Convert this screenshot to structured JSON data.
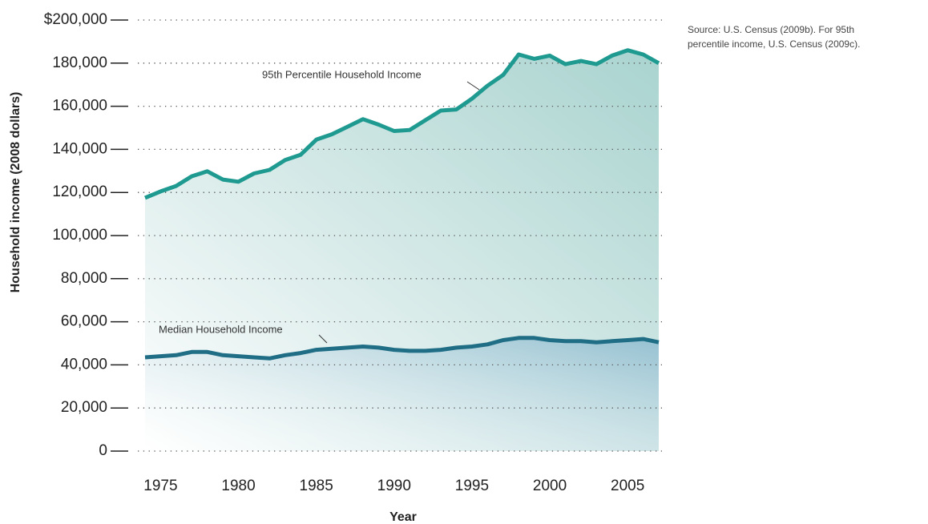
{
  "chart_data": {
    "type": "line",
    "y_label": "Household income (2008 dollars)",
    "x_label": "Year",
    "note": [
      "Source: U.S. Census (2009b). For 95th",
      "percentile income, U.S. Census (2009c)."
    ],
    "x": [
      1974,
      1975,
      1976,
      1977,
      1978,
      1979,
      1980,
      1981,
      1982,
      1983,
      1984,
      1985,
      1986,
      1987,
      1988,
      1989,
      1990,
      1991,
      1992,
      1993,
      1994,
      1995,
      1996,
      1997,
      1998,
      1999,
      2000,
      2001,
      2002,
      2003,
      2004,
      2005,
      2006,
      2007
    ],
    "series": [
      {
        "name": "95th Percentile Household Income",
        "color": "#1f9a90",
        "values": [
          117500,
          120500,
          123000,
          127500,
          129800,
          126000,
          125000,
          128800,
          130500,
          135000,
          137500,
          144500,
          147000,
          150500,
          154000,
          151500,
          148500,
          149000,
          153500,
          158000,
          158500,
          163500,
          169500,
          174500,
          184000,
          182000,
          183500,
          179500,
          181000,
          179500,
          183500,
          186000,
          184000,
          180000
        ]
      },
      {
        "name": "Median Household Income",
        "color": "#1f6e86",
        "values": [
          43500,
          44000,
          44500,
          46000,
          46000,
          44500,
          44000,
          43500,
          43000,
          44500,
          45500,
          47000,
          47500,
          48000,
          48500,
          48000,
          47000,
          46500,
          46500,
          47000,
          48000,
          48500,
          49500,
          51500,
          52500,
          52500,
          51500,
          51000,
          51000,
          50500,
          51000,
          51500,
          52000,
          50500
        ]
      }
    ],
    "xlim": [
      1974,
      2007
    ],
    "xticks": [
      1975,
      1980,
      1985,
      1990,
      1995,
      2000,
      2005
    ],
    "ylim": [
      0,
      200000
    ],
    "yticks": [
      0,
      {
        "value": 20000,
        "label": "20,000"
      },
      {
        "value": 40000,
        "label": "40,000"
      },
      {
        "value": 60000,
        "label": "60,000"
      },
      {
        "value": 80000,
        "label": "80,000"
      },
      {
        "value": 100000,
        "label": "100,000"
      },
      {
        "value": 120000,
        "label": "120,000"
      },
      {
        "value": 140000,
        "label": "140,000"
      },
      {
        "value": 160000,
        "label": "160,000"
      },
      {
        "value": 180000,
        "label": "180,000"
      },
      {
        "value": 200000,
        "label": "$200,000"
      }
    ],
    "grid": true
  }
}
